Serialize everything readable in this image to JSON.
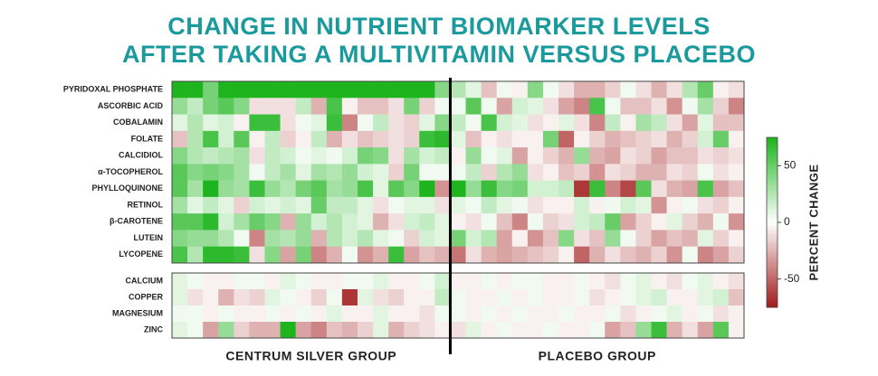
{
  "chart_data": {
    "type": "heatmap",
    "title": [
      "CHANGE IN NUTRIENT BIOMARKER LEVELS",
      "AFTER TAKING A MULTIVITAMIN VERSUS PLACEBO"
    ],
    "categories": [
      [
        "PYRIDOXAL PHOSPHATE",
        "ASCORBIC ACID",
        "COBALAMIN",
        "FOLATE",
        "CALCIDIOL",
        "α-TOCOPHEROL",
        "PHYLLOQUINONE",
        "RETINOL",
        "β-CAROTENE",
        "LUTEIN",
        "LYCOPENE"
      ],
      [
        "CALCIUM",
        "COPPER",
        "MAGNESIUM",
        "ZINC"
      ]
    ],
    "series": [
      {
        "name": "CENTRUM SILVER GROUP",
        "values": [
          [
            [
              75,
              75,
              45,
              75,
              75,
              75,
              75,
              75,
              75,
              75,
              75,
              75,
              75,
              75,
              75,
              75,
              75,
              40
            ],
            [
              35,
              20,
              45,
              55,
              40,
              -10,
              -10,
              -10,
              20,
              -25,
              60,
              -5,
              -20,
              -20,
              -10,
              45,
              -15,
              5
            ],
            [
              10,
              25,
              10,
              15,
              -5,
              65,
              65,
              -10,
              5,
              10,
              65,
              -40,
              5,
              20,
              -10,
              -15,
              10,
              40
            ],
            [
              -20,
              25,
              60,
              15,
              55,
              -5,
              20,
              -15,
              -5,
              20,
              -25,
              -10,
              -20,
              -15,
              -10,
              -15,
              65,
              70
            ],
            [
              40,
              25,
              20,
              25,
              30,
              -10,
              20,
              15,
              5,
              10,
              5,
              15,
              45,
              40,
              -10,
              30,
              15,
              20
            ],
            [
              55,
              40,
              45,
              40,
              30,
              5,
              20,
              30,
              10,
              30,
              25,
              35,
              15,
              10,
              -15,
              45,
              5,
              5
            ],
            [
              55,
              30,
              75,
              35,
              30,
              65,
              35,
              25,
              45,
              55,
              30,
              35,
              60,
              10,
              55,
              40,
              75,
              -35
            ],
            [
              30,
              10,
              20,
              10,
              -15,
              15,
              10,
              15,
              10,
              50,
              20,
              20,
              10,
              -10,
              5,
              10,
              10,
              -10
            ],
            [
              55,
              55,
              70,
              15,
              30,
              50,
              40,
              -25,
              35,
              15,
              25,
              15,
              10,
              -25,
              -10,
              15,
              20,
              10
            ],
            [
              40,
              35,
              35,
              25,
              5,
              -40,
              30,
              25,
              35,
              -25,
              25,
              15,
              25,
              10,
              5,
              -15,
              15,
              10
            ],
            [
              60,
              25,
              70,
              70,
              65,
              -10,
              40,
              -30,
              45,
              -40,
              -25,
              5,
              -35,
              -25,
              65,
              -30,
              -20,
              -25
            ]
          ],
          [
            [
              10,
              5,
              -5,
              -5,
              5,
              5,
              -5,
              10,
              5,
              -5,
              -5,
              5,
              5,
              10,
              -5,
              -5,
              5,
              15
            ],
            [
              10,
              -10,
              -5,
              -25,
              -10,
              -15,
              10,
              5,
              -5,
              -15,
              5,
              -65,
              10,
              -10,
              -15,
              -5,
              -5,
              20
            ],
            [
              5,
              5,
              -5,
              5,
              -5,
              -5,
              5,
              -5,
              5,
              -5,
              10,
              -5,
              -5,
              10,
              -5,
              -5,
              -10,
              5
            ],
            [
              10,
              5,
              -30,
              35,
              -15,
              -25,
              -25,
              75,
              -30,
              -40,
              -20,
              -25,
              -15,
              10,
              -25,
              -15,
              -10,
              -5
            ]
          ]
        ]
      },
      {
        "name": "PLACEBO GROUP",
        "values": [
          [
            [
              25,
              10,
              -20,
              5,
              -5,
              40,
              5,
              -10,
              -25,
              -25,
              -15,
              5,
              -10,
              -25,
              -10,
              25,
              50,
              -5,
              -10
            ],
            [
              5,
              55,
              5,
              -30,
              15,
              10,
              -10,
              -30,
              -40,
              60,
              5,
              -20,
              -20,
              -10,
              -35,
              5,
              30,
              -15,
              -40
            ],
            [
              20,
              5,
              60,
              15,
              10,
              -10,
              -5,
              10,
              -10,
              -40,
              20,
              -5,
              30,
              20,
              -10,
              -30,
              10,
              -20,
              -20
            ],
            [
              10,
              -20,
              -5,
              -10,
              -5,
              -5,
              45,
              -50,
              -5,
              -15,
              -25,
              -20,
              -15,
              -10,
              -25,
              -15,
              15,
              50,
              -5
            ],
            [
              -5,
              35,
              5,
              10,
              -30,
              -5,
              -15,
              -25,
              35,
              -25,
              -30,
              -10,
              -15,
              -30,
              -20,
              -20,
              -10,
              -15,
              -10
            ],
            [
              5,
              20,
              -15,
              25,
              35,
              -10,
              -5,
              -20,
              -15,
              -35,
              -10,
              -15,
              -25,
              -25,
              -10,
              -15,
              5,
              -10,
              -5
            ],
            [
              75,
              35,
              65,
              40,
              45,
              15,
              15,
              20,
              -65,
              65,
              -40,
              -60,
              55,
              -10,
              -25,
              -30,
              60,
              -30,
              -20
            ],
            [
              10,
              5,
              20,
              10,
              5,
              -10,
              -5,
              -5,
              15,
              -5,
              5,
              15,
              10,
              -35,
              -5,
              5,
              -10,
              -15,
              -5
            ],
            [
              -5,
              -10,
              5,
              -20,
              -40,
              5,
              -15,
              -10,
              15,
              20,
              50,
              -30,
              -15,
              -5,
              10,
              -15,
              -25,
              5,
              -35
            ],
            [
              45,
              15,
              25,
              -30,
              -5,
              -35,
              -20,
              40,
              -10,
              -20,
              35,
              5,
              -15,
              -30,
              -20,
              -25,
              10,
              -15,
              -5
            ],
            [
              -45,
              -10,
              -25,
              -30,
              -25,
              -20,
              -15,
              -5,
              -50,
              -25,
              -10,
              -20,
              -25,
              -15,
              -35,
              5,
              -40,
              -30,
              -15
            ]
          ],
          [
            [
              -5,
              -5,
              5,
              -5,
              5,
              5,
              -5,
              -5,
              5,
              -5,
              -10,
              5,
              10,
              -5,
              -10,
              5,
              10,
              -5,
              -10
            ],
            [
              5,
              -5,
              -5,
              5,
              -5,
              5,
              -5,
              -5,
              5,
              -10,
              -5,
              5,
              10,
              15,
              -5,
              -5,
              10,
              15,
              -20
            ],
            [
              5,
              -5,
              5,
              -5,
              5,
              -5,
              -5,
              5,
              -5,
              -5,
              5,
              -10,
              -5,
              5,
              10,
              -5,
              5,
              -10,
              -5
            ],
            [
              -10,
              10,
              -5,
              5,
              -5,
              -5,
              5,
              -5,
              -5,
              5,
              -30,
              -20,
              35,
              65,
              -25,
              -10,
              -30,
              55,
              -5
            ]
          ]
        ]
      }
    ],
    "colormap": [
      "#a01818",
      "#ffffff",
      "#1db41d"
    ],
    "zlim": [
      -75,
      75
    ],
    "zticks": [
      50,
      0,
      -50
    ],
    "colorbar_label": "PERCENT CHANGE"
  }
}
